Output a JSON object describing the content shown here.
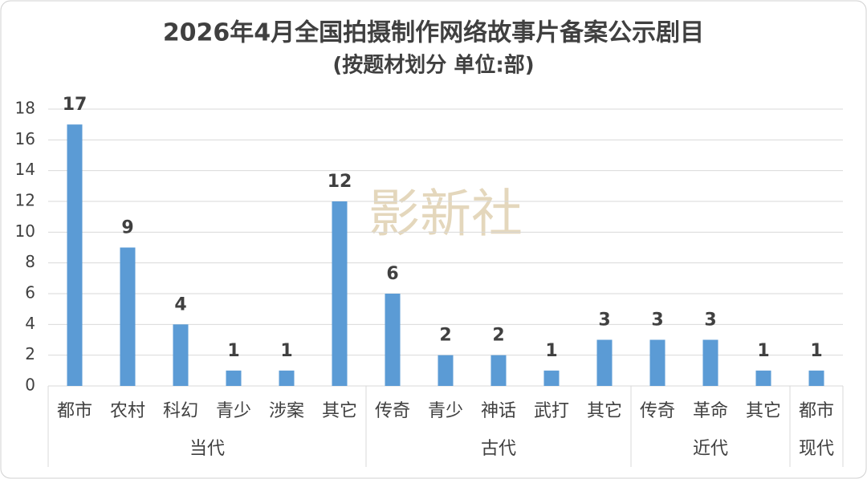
{
  "chart_data": {
    "type": "bar",
    "title": "2026年4月全国拍摄制作网络故事片备案公示剧目",
    "subtitle": "(按题材划分 单位:部)",
    "watermark": "影新社",
    "color": "#5b9bd5",
    "grid": true,
    "ylim": [
      0,
      18
    ],
    "yticks": [
      0,
      2,
      4,
      6,
      8,
      10,
      12,
      14,
      16,
      18
    ],
    "groups": [
      {
        "name": "当代",
        "categories": [
          "都市",
          "农村",
          "科幻",
          "青少",
          "涉案",
          "其它"
        ],
        "values": [
          17,
          9,
          4,
          1,
          1,
          12
        ]
      },
      {
        "name": "古代",
        "categories": [
          "传奇",
          "青少",
          "神话",
          "武打",
          "其它"
        ],
        "values": [
          6,
          2,
          2,
          1,
          3
        ]
      },
      {
        "name": "近代",
        "categories": [
          "传奇",
          "革命",
          "其它"
        ],
        "values": [
          3,
          3,
          1
        ]
      },
      {
        "name": "现代",
        "categories": [
          "都市"
        ],
        "values": [
          1
        ]
      }
    ]
  }
}
